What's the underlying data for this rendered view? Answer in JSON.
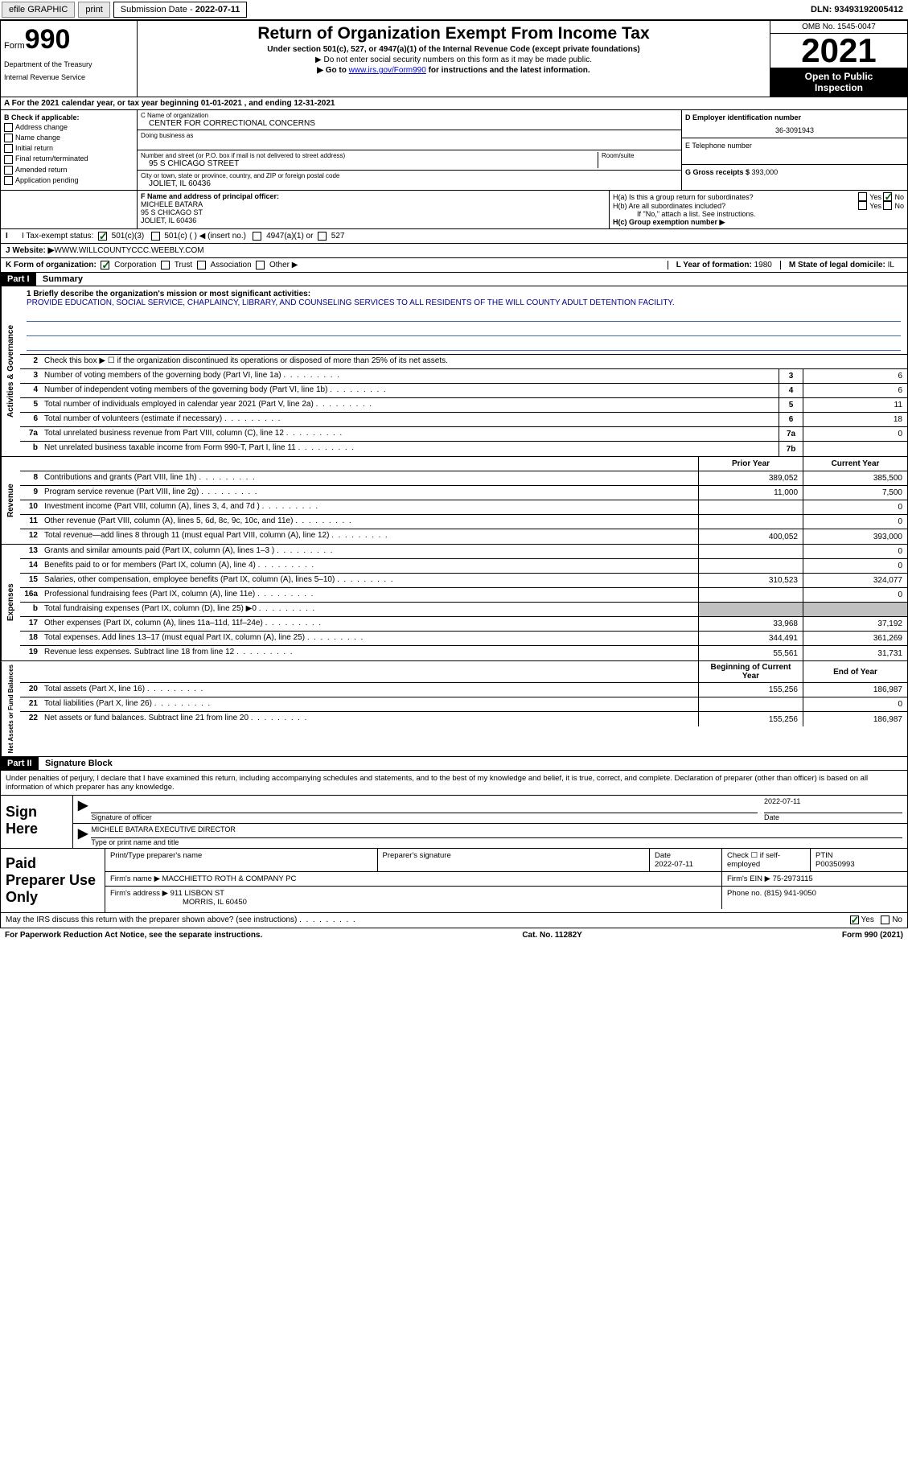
{
  "topbar": {
    "efile": "efile GRAPHIC",
    "print": "print",
    "submission_label": "Submission Date - ",
    "submission_date": "2022-07-11",
    "dln_label": "DLN: ",
    "dln": "93493192005412"
  },
  "header": {
    "form_label": "Form",
    "form_number": "990",
    "dept": "Department of the Treasury",
    "irs": "Internal Revenue Service",
    "title": "Return of Organization Exempt From Income Tax",
    "sub1": "Under section 501(c), 527, or 4947(a)(1) of the Internal Revenue Code (except private foundations)",
    "sub2": "▶ Do not enter social security numbers on this form as it may be made public.",
    "sub3_pre": "▶ Go to ",
    "sub3_link": "www.irs.gov/Form990",
    "sub3_post": " for instructions and the latest information.",
    "omb": "OMB No. 1545-0047",
    "year": "2021",
    "open1": "Open to Public",
    "open2": "Inspection"
  },
  "period": {
    "text_a": "A For the 2021 calendar year, or tax year beginning ",
    "begin": "01-01-2021",
    "text_b": " , and ending ",
    "end": "12-31-2021"
  },
  "entity": {
    "b_label": "B Check if applicable:",
    "b_items": [
      "Address change",
      "Name change",
      "Initial return",
      "Final return/terminated",
      "Amended return",
      "Application pending"
    ],
    "c_label": "C Name of organization",
    "c_name": "CENTER FOR CORRECTIONAL CONCERNS",
    "dba_label": "Doing business as",
    "street_label": "Number and street (or P.O. box if mail is not delivered to street address)",
    "room_label": "Room/suite",
    "street": "95 S CHICAGO STREET",
    "city_label": "City or town, state or province, country, and ZIP or foreign postal code",
    "city": "JOLIET, IL  60436",
    "d_label": "D Employer identification number",
    "ein": "36-3091943",
    "e_label": "E Telephone number",
    "g_label": "G Gross receipts $ ",
    "g_val": "393,000"
  },
  "fi": {
    "f_label": "F Name and address of principal officer:",
    "f_name": "MICHELE BATARA",
    "f_street": "95 S CHICAGO ST",
    "f_city": "JOLIET, IL  60436",
    "i_label": "I Tax-exempt status:",
    "i_501c3": "501(c)(3)",
    "i_501c": "501(c) (  ) ◀ (insert no.)",
    "i_4947": "4947(a)(1) or",
    "i_527": "527",
    "ha_label": "H(a)  Is this a group return for subordinates?",
    "hb_label": "H(b)  Are all subordinates included?",
    "hb_note": "If \"No,\" attach a list. See instructions.",
    "hc_label": "H(c)  Group exemption number ▶",
    "yes": "Yes",
    "no": "No"
  },
  "j": {
    "label": "J  Website: ▶  ",
    "url": "WWW.WILLCOUNTYCCC.WEEBLY.COM"
  },
  "k": {
    "label": "K Form of organization:",
    "corp": "Corporation",
    "trust": "Trust",
    "assoc": "Association",
    "other": "Other ▶",
    "l_label": "L Year of formation: ",
    "l_val": "1980",
    "m_label": "M State of legal domicile: ",
    "m_val": "IL"
  },
  "part1": {
    "hdr": "Part I",
    "title": "Summary",
    "line1_label": "1  Briefly describe the organization's mission or most significant activities:",
    "line1_text": "PROVIDE EDUCATION, SOCIAL SERVICE, CHAPLAINCY, LIBRARY, AND COUNSELING SERVICES TO ALL RESIDENTS OF THE WILL COUNTY ADULT DETENTION FACILITY.",
    "line2": "Check this box ▶ ☐ if the organization discontinued its operations or disposed of more than 25% of its net assets.",
    "sections": {
      "governance": "Activities & Governance",
      "revenue": "Revenue",
      "expenses": "Expenses",
      "net": "Net Assets or Fund Balances"
    },
    "col_hdr_prior": "Prior Year",
    "col_hdr_current": "Current Year",
    "col_hdr_begin": "Beginning of Current Year",
    "col_hdr_end": "End of Year",
    "rows_gov": [
      {
        "n": "3",
        "d": "Number of voting members of the governing body (Part VI, line 1a)",
        "box": "3",
        "v": "6"
      },
      {
        "n": "4",
        "d": "Number of independent voting members of the governing body (Part VI, line 1b)",
        "box": "4",
        "v": "6"
      },
      {
        "n": "5",
        "d": "Total number of individuals employed in calendar year 2021 (Part V, line 2a)",
        "box": "5",
        "v": "11"
      },
      {
        "n": "6",
        "d": "Total number of volunteers (estimate if necessary)",
        "box": "6",
        "v": "18"
      },
      {
        "n": "7a",
        "d": "Total unrelated business revenue from Part VIII, column (C), line 12",
        "box": "7a",
        "v": "0"
      },
      {
        "n": "b",
        "d": "Net unrelated business taxable income from Form 990-T, Part I, line 11",
        "box": "7b",
        "v": ""
      }
    ],
    "rows_rev": [
      {
        "n": "8",
        "d": "Contributions and grants (Part VIII, line 1h)",
        "p": "389,052",
        "c": "385,500"
      },
      {
        "n": "9",
        "d": "Program service revenue (Part VIII, line 2g)",
        "p": "11,000",
        "c": "7,500"
      },
      {
        "n": "10",
        "d": "Investment income (Part VIII, column (A), lines 3, 4, and 7d )",
        "p": "",
        "c": "0"
      },
      {
        "n": "11",
        "d": "Other revenue (Part VIII, column (A), lines 5, 6d, 8c, 9c, 10c, and 11e)",
        "p": "",
        "c": "0"
      },
      {
        "n": "12",
        "d": "Total revenue—add lines 8 through 11 (must equal Part VIII, column (A), line 12)",
        "p": "400,052",
        "c": "393,000"
      }
    ],
    "rows_exp": [
      {
        "n": "13",
        "d": "Grants and similar amounts paid (Part IX, column (A), lines 1–3 )",
        "p": "",
        "c": "0"
      },
      {
        "n": "14",
        "d": "Benefits paid to or for members (Part IX, column (A), line 4)",
        "p": "",
        "c": "0"
      },
      {
        "n": "15",
        "d": "Salaries, other compensation, employee benefits (Part IX, column (A), lines 5–10)",
        "p": "310,523",
        "c": "324,077"
      },
      {
        "n": "16a",
        "d": "Professional fundraising fees (Part IX, column (A), line 11e)",
        "p": "",
        "c": "0"
      },
      {
        "n": "b",
        "d": "Total fundraising expenses (Part IX, column (D), line 25) ▶0",
        "p": "shaded",
        "c": "shaded"
      },
      {
        "n": "17",
        "d": "Other expenses (Part IX, column (A), lines 11a–11d, 11f–24e)",
        "p": "33,968",
        "c": "37,192"
      },
      {
        "n": "18",
        "d": "Total expenses. Add lines 13–17 (must equal Part IX, column (A), line 25)",
        "p": "344,491",
        "c": "361,269"
      },
      {
        "n": "19",
        "d": "Revenue less expenses. Subtract line 18 from line 12",
        "p": "55,561",
        "c": "31,731"
      }
    ],
    "rows_net": [
      {
        "n": "20",
        "d": "Total assets (Part X, line 16)",
        "p": "155,256",
        "c": "186,987"
      },
      {
        "n": "21",
        "d": "Total liabilities (Part X, line 26)",
        "p": "",
        "c": "0"
      },
      {
        "n": "22",
        "d": "Net assets or fund balances. Subtract line 21 from line 20",
        "p": "155,256",
        "c": "186,987"
      }
    ]
  },
  "part2": {
    "hdr": "Part II",
    "title": "Signature Block",
    "decl": "Under penalties of perjury, I declare that I have examined this return, including accompanying schedules and statements, and to the best of my knowledge and belief, it is true, correct, and complete. Declaration of preparer (other than officer) is based on all information of which preparer has any knowledge.",
    "sign_here": "Sign Here",
    "sig_officer": "Signature of officer",
    "sig_date": "2022-07-11",
    "date_lbl": "Date",
    "sig_name": "MICHELE BATARA  EXECUTIVE DIRECTOR",
    "sig_name_lbl": "Type or print name and title",
    "paid": "Paid Preparer Use Only",
    "p_name_lbl": "Print/Type preparer's name",
    "p_sig_lbl": "Preparer's signature",
    "p_date_lbl": "Date",
    "p_date": "2022-07-11",
    "p_check_lbl": "Check ☐ if self-employed",
    "p_ptin_lbl": "PTIN",
    "p_ptin": "P00350993",
    "firm_name_lbl": "Firm's name    ▶ ",
    "firm_name": "MACCHIETTO ROTH & COMPANY PC",
    "firm_ein_lbl": "Firm's EIN ▶ ",
    "firm_ein": "75-2973115",
    "firm_addr_lbl": "Firm's address ▶ ",
    "firm_addr1": "911 LISBON ST",
    "firm_addr2": "MORRIS, IL  60450",
    "firm_phone_lbl": "Phone no. ",
    "firm_phone": "(815) 941-9050",
    "discuss": "May the IRS discuss this return with the preparer shown above? (see instructions)"
  },
  "footer": {
    "pra": "For Paperwork Reduction Act Notice, see the separate instructions.",
    "cat": "Cat. No. 11282Y",
    "form": "Form 990 (2021)"
  }
}
